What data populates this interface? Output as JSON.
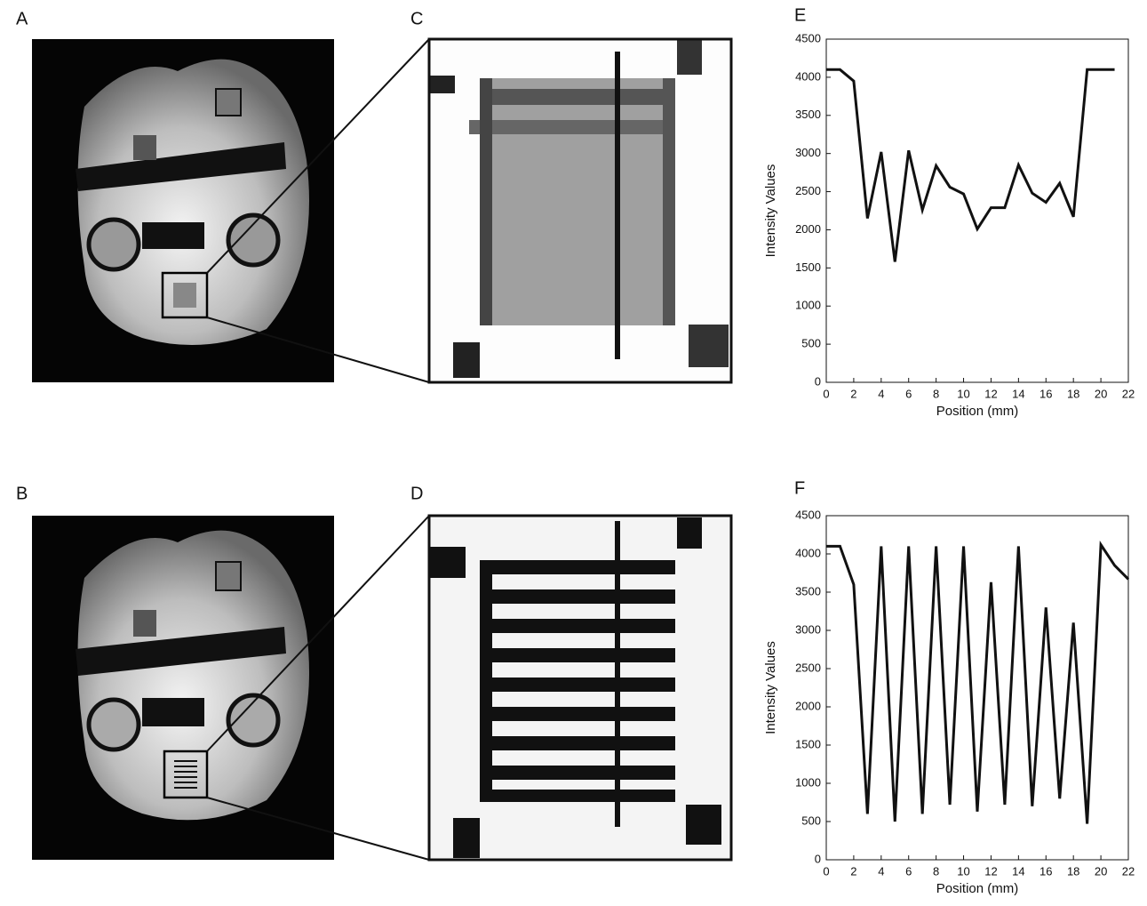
{
  "panel_labels": [
    "A",
    "B",
    "C",
    "D"
  ],
  "chart_data": [
    {
      "type": "line",
      "panel": "E",
      "xlabel": "Position (mm)",
      "ylabel": "Intensity Values",
      "color": "#111111",
      "x": [
        0,
        1,
        2,
        3,
        4,
        5,
        6,
        7,
        8,
        9,
        10,
        11,
        12,
        13,
        14,
        15,
        16,
        17,
        18,
        19,
        20,
        21
      ],
      "values": [
        4100,
        4100,
        3950,
        2150,
        3020,
        1580,
        3040,
        2260,
        2840,
        2560,
        2470,
        2010,
        2290,
        2290,
        2850,
        2480,
        2360,
        2610,
        2170,
        4100,
        4100,
        4100
      ],
      "xlim": [
        0,
        22
      ],
      "xticks": [
        0,
        2,
        4,
        6,
        8,
        10,
        12,
        14,
        16,
        18,
        20,
        22
      ],
      "ylim": [
        0,
        4500
      ],
      "yticks": [
        0,
        500,
        1000,
        1500,
        2000,
        2500,
        3000,
        3500,
        4000,
        4500
      ]
    },
    {
      "type": "line",
      "panel": "F",
      "xlabel": "Position (mm)",
      "ylabel": "Intensity Values",
      "color": "#111111",
      "x": [
        0,
        1,
        2,
        3,
        4,
        5,
        6,
        7,
        8,
        9,
        10,
        11,
        12,
        13,
        14,
        15,
        16,
        17,
        18,
        19,
        20,
        21,
        22
      ],
      "values": [
        4100,
        4100,
        3600,
        600,
        4100,
        500,
        4100,
        600,
        4100,
        720,
        4100,
        630,
        3630,
        720,
        4100,
        700,
        3300,
        800,
        3100,
        470,
        4120,
        3850,
        3670
      ],
      "xlim": [
        0,
        22
      ],
      "xticks": [
        0,
        2,
        4,
        6,
        8,
        10,
        12,
        14,
        16,
        18,
        20,
        22
      ],
      "ylim": [
        0,
        4500
      ],
      "yticks": [
        0,
        500,
        1000,
        1500,
        2000,
        2500,
        3000,
        3500,
        4000,
        4500
      ]
    }
  ]
}
